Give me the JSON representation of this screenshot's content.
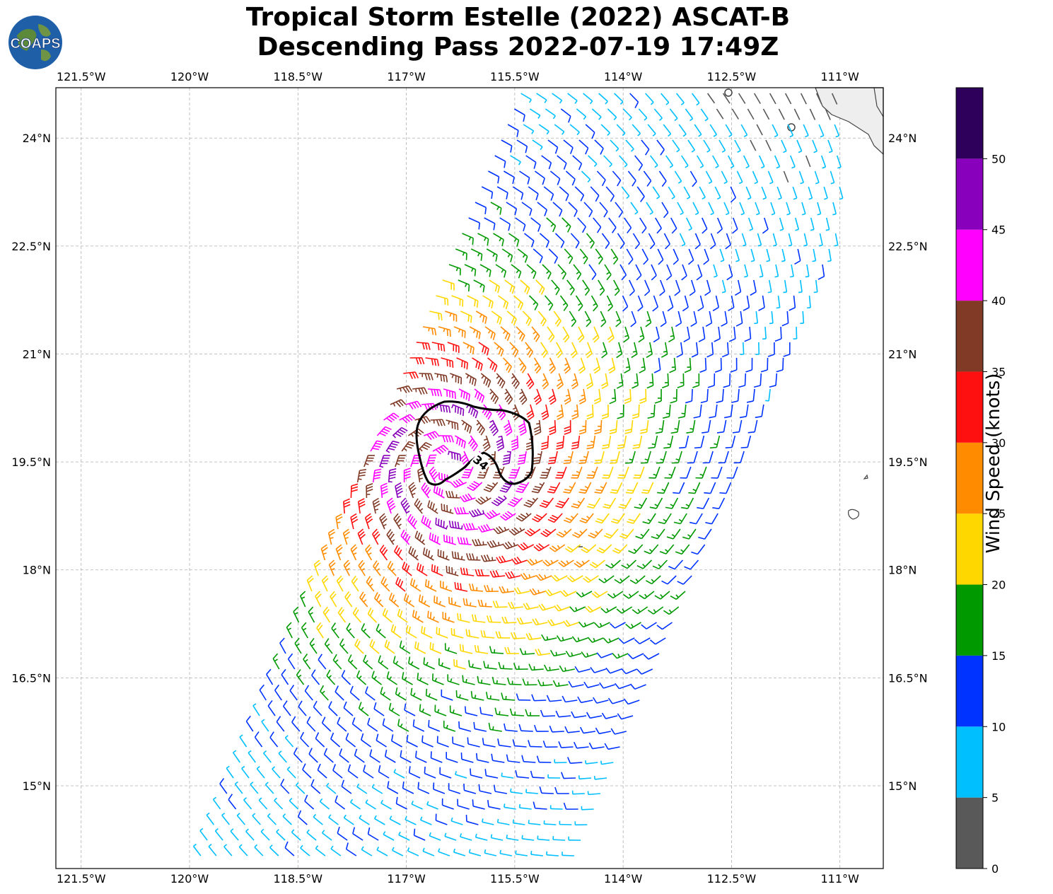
{
  "title": {
    "line1": "Tropical Storm Estelle (2022) ASCAT-B",
    "line2": "Descending Pass 2022-07-19 17:49Z"
  },
  "logo": {
    "text": "COAPS",
    "icon": "globe-logo-icon"
  },
  "map": {
    "lon_range": [
      -121.85,
      -110.4
    ],
    "lat_range": [
      13.85,
      24.7
    ],
    "lon_ticks": [
      "121.5°W",
      "120°W",
      "118.5°W",
      "117°W",
      "115.5°W",
      "114°W",
      "112.5°W",
      "111°W"
    ],
    "lon_tick_values": [
      -121.5,
      -120,
      -118.5,
      -117,
      -115.5,
      -114,
      -112.5,
      -111
    ],
    "lat_ticks": [
      "24°N",
      "22.5°N",
      "21°N",
      "19.5°N",
      "18°N",
      "16.5°N",
      "15°N"
    ],
    "lat_tick_values": [
      24,
      22.5,
      21,
      19.5,
      18,
      16.5,
      15
    ],
    "storm_center": {
      "lon": -116.4,
      "lat": 19.45
    },
    "contour_label": "34",
    "grid": true
  },
  "colorbar": {
    "label": "Wind Speed (knots)",
    "ticks": [
      "0",
      "5",
      "10",
      "15",
      "20",
      "25",
      "30",
      "35",
      "40",
      "45",
      "50"
    ],
    "colors": [
      "#595959",
      "#00bfff",
      "#0033ff",
      "#009900",
      "#ffd700",
      "#ff8c00",
      "#ff1010",
      "#803a26",
      "#ff00ff",
      "#8800bb",
      "#2e005c"
    ],
    "min": 0,
    "max": 55
  }
}
